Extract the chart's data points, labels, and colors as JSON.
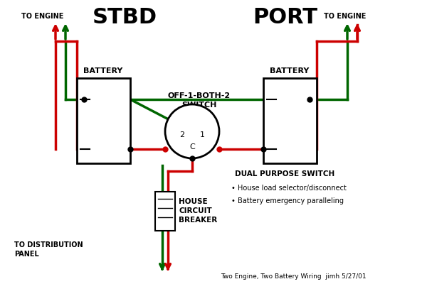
{
  "bg_color": "#ffffff",
  "red": "#cc0000",
  "green": "#006600",
  "black": "#000000",
  "figsize": [
    6.0,
    4.0
  ],
  "dpi": 100,
  "title_bottom": "Two Engine, Two Battery Wiring  jimh 5/27/01",
  "stbd_label": "STBD",
  "port_label": "PORT",
  "to_engine_label": "TO ENGINE",
  "battery_label": "BATTERY",
  "switch_label": "OFF-1-BOTH-2\nSWITCH",
  "house_label": "HOUSE\nCIRCUIT\nBREAKER",
  "dist_label": "TO DISTRIBUTION\nPANEL",
  "dual_title": "DUAL PURPOSE SWITCH",
  "dual_bullet1": "House load selector/disconnect",
  "dual_bullet2": "Battery emergency paralleling",
  "lw": 2.5
}
